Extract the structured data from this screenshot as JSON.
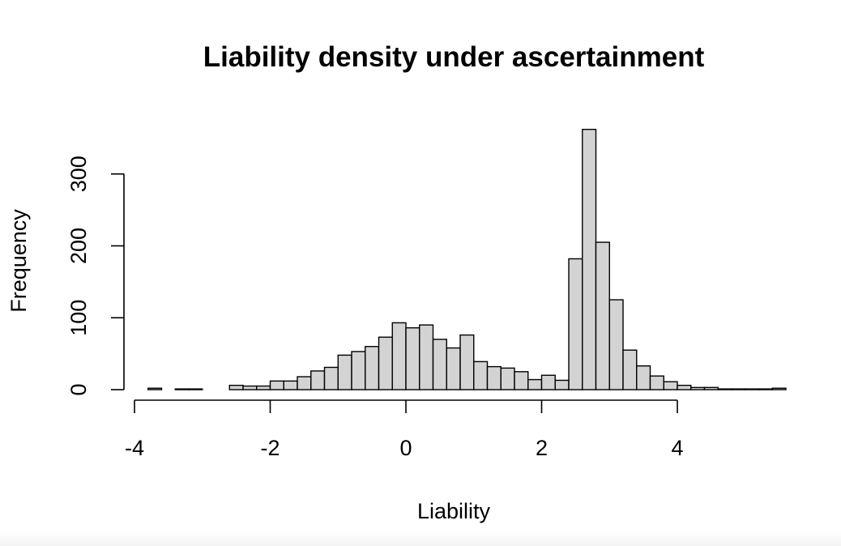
{
  "chart_data": {
    "type": "bar",
    "title": "Liability density under ascertainment",
    "xlabel": "Liability",
    "ylabel": "Frequency",
    "bin_width": 0.2,
    "bin_start": -3.8,
    "counts": [
      2,
      0,
      1,
      1,
      0,
      0,
      6,
      5,
      5,
      12,
      12,
      18,
      26,
      31,
      48,
      53,
      60,
      73,
      93,
      86,
      90,
      70,
      58,
      76,
      39,
      32,
      30,
      25,
      14,
      20,
      13,
      182,
      362,
      205,
      125,
      55,
      33,
      19,
      11,
      6,
      3,
      3,
      1,
      1,
      1,
      1,
      2
    ],
    "xlim": [
      -4,
      5.2
    ],
    "ylim": [
      0,
      362
    ],
    "x_ticks": [
      -4,
      -2,
      0,
      2,
      4
    ],
    "x_tick_labels": [
      "-4",
      "-2",
      "0",
      "2",
      "4"
    ],
    "y_ticks": [
      0,
      100,
      200,
      300
    ],
    "y_tick_labels": [
      "0",
      "100",
      "200",
      "300"
    ],
    "bar_color": "#d3d3d3",
    "grid": false,
    "legend": "none"
  }
}
